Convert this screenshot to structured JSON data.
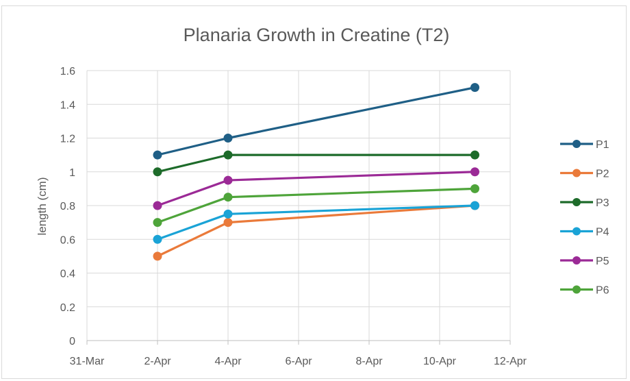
{
  "chart_data": {
    "type": "line",
    "title": "Planaria Growth in Creatine (T2)",
    "xlabel": "",
    "ylabel": "length (cm)",
    "x_ticks": [
      "31-Mar",
      "2-Apr",
      "4-Apr",
      "6-Apr",
      "8-Apr",
      "10-Apr",
      "12-Apr"
    ],
    "x_tick_values": [
      0,
      2,
      4,
      6,
      8,
      10,
      12
    ],
    "xlim": [
      0,
      12
    ],
    "y_ticks": [
      "0",
      "0.2",
      "0.4",
      "0.6",
      "0.8",
      "1",
      "1.2",
      "1.4",
      "1.6"
    ],
    "y_tick_values": [
      0,
      0.2,
      0.4,
      0.6,
      0.8,
      1.0,
      1.2,
      1.4,
      1.6
    ],
    "ylim": [
      0,
      1.6
    ],
    "grid": true,
    "legend_position": "right",
    "x": [
      2,
      4,
      11
    ],
    "x_labels": [
      "2-Apr",
      "4-Apr",
      "11-Apr"
    ],
    "series": [
      {
        "name": "P1",
        "color": "#1f5f86",
        "values": [
          1.1,
          1.2,
          1.5
        ]
      },
      {
        "name": "P2",
        "color": "#ea7a3a",
        "values": [
          0.5,
          0.7,
          0.8
        ]
      },
      {
        "name": "P3",
        "color": "#1d6b2a",
        "values": [
          1.0,
          1.1,
          1.1
        ]
      },
      {
        "name": "P4",
        "color": "#1aa3d6",
        "values": [
          0.6,
          0.75,
          0.8
        ]
      },
      {
        "name": "P5",
        "color": "#9b2a96",
        "values": [
          0.8,
          0.95,
          1.0
        ]
      },
      {
        "name": "P6",
        "color": "#4ea43a",
        "values": [
          0.7,
          0.85,
          0.9
        ]
      }
    ]
  }
}
